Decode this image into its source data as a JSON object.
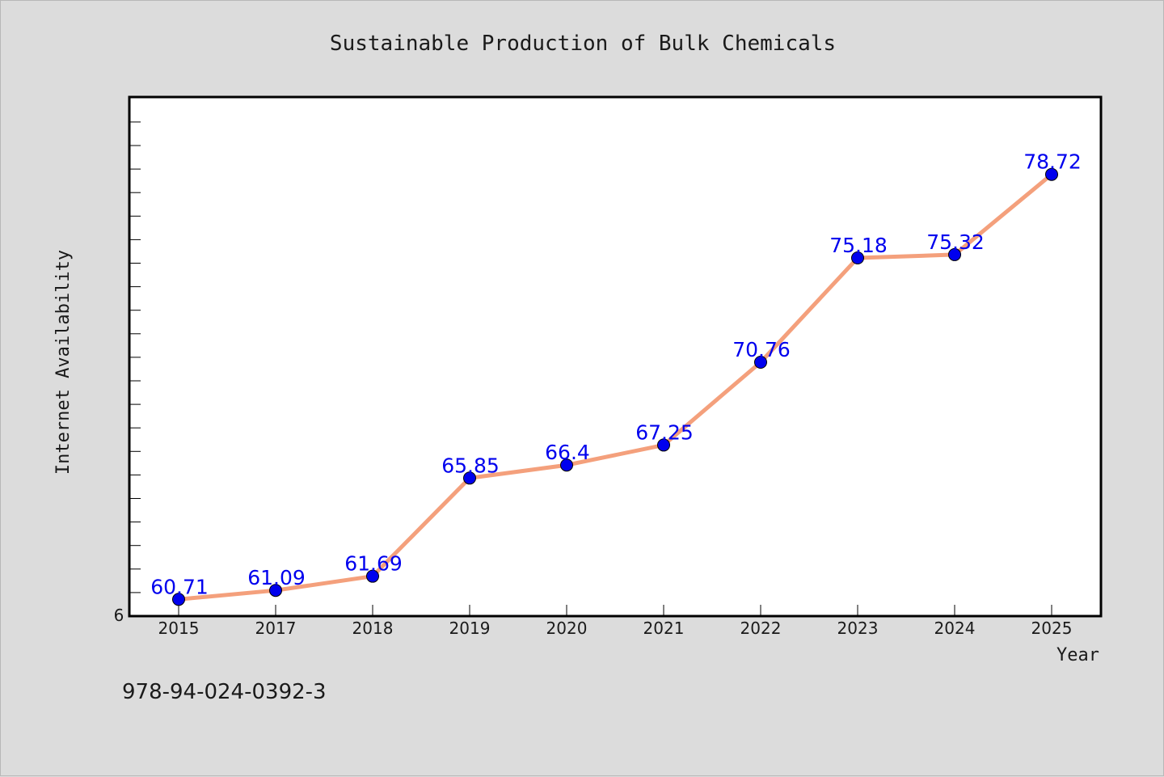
{
  "chart_data": {
    "type": "line",
    "title": "Sustainable Production of Bulk Chemicals",
    "xlabel": "Year",
    "ylabel": "Internet Availability",
    "categories": [
      "2015",
      "2017",
      "2018",
      "2019",
      "2020",
      "2021",
      "2022",
      "2023",
      "2024",
      "2025"
    ],
    "series": [
      {
        "values": [
          60.71,
          61.09,
          61.69,
          65.85,
          66.4,
          67.25,
          70.76,
          75.18,
          75.32,
          78.72
        ],
        "labels": [
          "60.71",
          "61.09",
          "61.69",
          "65.85",
          "66.4",
          "67.25",
          "70.76",
          "75.18",
          "75.32",
          "78.72"
        ]
      }
    ],
    "ylim": [
      60,
      82
    ],
    "y_tick_label": "6",
    "grid": false,
    "line_color": "#f4a07c",
    "marker_color": "#0000ee",
    "label_color": "#0000ee"
  },
  "footer": {
    "isbn": "978-94-024-0392-3"
  }
}
